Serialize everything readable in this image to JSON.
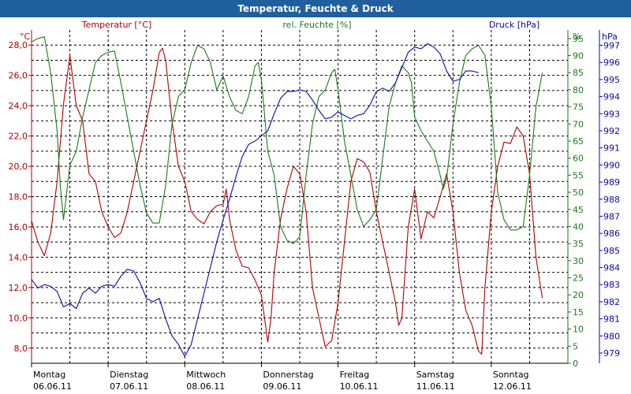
{
  "window": {
    "title": "Temperatur, Feuchte & Druck"
  },
  "chart_data": {
    "type": "line",
    "title": "Temperatur, Feuchte & Druck",
    "colors": {
      "temperature": "#b00000",
      "humidity": "#1a7a1a",
      "pressure": "#0a0aa6"
    },
    "x_labels": [
      {
        "day": "Montag",
        "date": "06.06.11",
        "t": 0
      },
      {
        "day": "Dienstag",
        "date": "07.06.11",
        "t": 24
      },
      {
        "day": "Mittwoch",
        "date": "08.06.11",
        "t": 48
      },
      {
        "day": "Donnerstag",
        "date": "09.06.11",
        "t": 72
      },
      {
        "day": "Freitag",
        "date": "10.06.11",
        "t": 96
      },
      {
        "day": "Samstag",
        "date": "11.06.11",
        "t": 120
      },
      {
        "day": "Sonntag",
        "date": "12.06.11",
        "t": 144
      }
    ],
    "xlim": [
      0,
      168
    ],
    "axes": {
      "temperature": {
        "label": "Temperatur [°C]",
        "unit": "°C",
        "range": [
          7,
          29
        ],
        "ticks": [
          8,
          10,
          12,
          14,
          16,
          18,
          20,
          22,
          24,
          26,
          28
        ],
        "tick_labels": [
          "8,0",
          "10,0",
          "12,0",
          "14,0",
          "16,0",
          "18,0",
          "20,0",
          "22,0",
          "24,0",
          "26,0",
          "28,0"
        ]
      },
      "humidity": {
        "label": "rel. Feuchte [%]",
        "unit": "%",
        "range": [
          0,
          97.5
        ],
        "ticks": [
          0,
          5,
          10,
          15,
          20,
          25,
          30,
          35,
          40,
          45,
          50,
          55,
          60,
          65,
          70,
          75,
          80,
          85,
          90,
          95
        ],
        "tick_labels": [
          "0",
          "5",
          "10",
          "15",
          "20",
          "25",
          "30",
          "35",
          "40",
          "45",
          "50",
          "55",
          "60",
          "65",
          "70",
          "75",
          "80",
          "85",
          "90",
          "95"
        ]
      },
      "pressure": {
        "label": "Druck [hPa]",
        "unit": "hPa",
        "range": [
          978.4,
          997.9
        ],
        "ticks": [
          979,
          980,
          981,
          982,
          983,
          984,
          985,
          986,
          987,
          988,
          989,
          990,
          991,
          992,
          993,
          994,
          995,
          996,
          997
        ],
        "tick_labels": [
          "979",
          "980",
          "981",
          "982",
          "983",
          "984",
          "985",
          "986",
          "987",
          "988",
          "989",
          "990",
          "991",
          "992",
          "993",
          "994",
          "995",
          "996",
          "997"
        ]
      }
    },
    "series": [
      {
        "name": "Temperatur [°C]",
        "axis": "temperature",
        "points": [
          [
            0,
            16.4
          ],
          [
            2,
            15
          ],
          [
            4,
            14.1
          ],
          [
            6,
            15.6
          ],
          [
            8,
            19
          ],
          [
            10,
            24.1
          ],
          [
            12,
            27.3
          ],
          [
            14,
            24
          ],
          [
            16,
            23
          ],
          [
            18,
            19.5
          ],
          [
            20,
            19
          ],
          [
            22,
            17
          ],
          [
            24,
            16
          ],
          [
            26,
            15.3
          ],
          [
            28,
            15.6
          ],
          [
            30,
            17
          ],
          [
            32,
            19
          ],
          [
            34,
            21
          ],
          [
            36,
            23
          ],
          [
            38,
            25
          ],
          [
            40,
            27.5
          ],
          [
            41,
            27.8
          ],
          [
            42,
            27
          ],
          [
            44,
            23
          ],
          [
            46,
            20
          ],
          [
            48,
            19
          ],
          [
            50,
            17
          ],
          [
            52,
            16.5
          ],
          [
            54,
            16.2
          ],
          [
            56,
            17
          ],
          [
            58,
            17.4
          ],
          [
            60,
            17.5
          ],
          [
            61,
            18.5
          ],
          [
            62,
            16.5
          ],
          [
            64,
            14.5
          ],
          [
            66,
            13.4
          ],
          [
            68,
            13.3
          ],
          [
            70,
            12.5
          ],
          [
            72,
            11.5
          ],
          [
            74,
            8.4
          ],
          [
            75,
            10
          ],
          [
            76,
            13
          ],
          [
            78,
            16.5
          ],
          [
            80,
            18.5
          ],
          [
            82,
            20
          ],
          [
            84,
            19.5
          ],
          [
            86,
            17
          ],
          [
            88,
            12
          ],
          [
            90,
            10
          ],
          [
            92,
            8.1
          ],
          [
            94,
            8.5
          ],
          [
            96,
            11
          ],
          [
            98,
            15
          ],
          [
            100,
            19
          ],
          [
            102,
            20.5
          ],
          [
            104,
            20.3
          ],
          [
            106,
            19.6
          ],
          [
            108,
            17
          ],
          [
            110,
            15
          ],
          [
            112,
            13
          ],
          [
            114,
            11
          ],
          [
            115,
            9.5
          ],
          [
            116,
            10
          ],
          [
            118,
            16
          ],
          [
            120,
            18.5
          ],
          [
            122,
            15.2
          ],
          [
            124,
            17
          ],
          [
            126,
            16.6
          ],
          [
            128,
            18
          ],
          [
            130,
            19.5
          ],
          [
            132,
            17
          ],
          [
            134,
            13
          ],
          [
            136,
            10.5
          ],
          [
            138,
            9.5
          ],
          [
            140,
            7.8
          ],
          [
            141,
            7.6
          ],
          [
            142,
            12
          ],
          [
            144,
            17
          ],
          [
            146,
            20
          ],
          [
            148,
            21.6
          ],
          [
            150,
            21.5
          ],
          [
            152,
            22.6
          ],
          [
            154,
            22
          ],
          [
            156,
            19.5
          ],
          [
            158,
            14
          ],
          [
            160,
            11.3
          ]
        ]
      },
      {
        "name": "rel. Feuchte [%]",
        "axis": "humidity",
        "points": [
          [
            0,
            94
          ],
          [
            2,
            95
          ],
          [
            4,
            95.5
          ],
          [
            6,
            85
          ],
          [
            8,
            68
          ],
          [
            9,
            52
          ],
          [
            10,
            42
          ],
          [
            12,
            58
          ],
          [
            14,
            62
          ],
          [
            16,
            72
          ],
          [
            18,
            80
          ],
          [
            20,
            88
          ],
          [
            22,
            90
          ],
          [
            24,
            91
          ],
          [
            26,
            91.3
          ],
          [
            28,
            82
          ],
          [
            30,
            72
          ],
          [
            32,
            62
          ],
          [
            34,
            52
          ],
          [
            36,
            44
          ],
          [
            38,
            41
          ],
          [
            40,
            41
          ],
          [
            42,
            52
          ],
          [
            44,
            70
          ],
          [
            46,
            78
          ],
          [
            48,
            80
          ],
          [
            50,
            88
          ],
          [
            52,
            93
          ],
          [
            54,
            92
          ],
          [
            56,
            88
          ],
          [
            58,
            80
          ],
          [
            60,
            84
          ],
          [
            62,
            78
          ],
          [
            64,
            74
          ],
          [
            66,
            73
          ],
          [
            68,
            78
          ],
          [
            70,
            87
          ],
          [
            71,
            88
          ],
          [
            72,
            83
          ],
          [
            74,
            62
          ],
          [
            76,
            55
          ],
          [
            78,
            40
          ],
          [
            80,
            36
          ],
          [
            82,
            35
          ],
          [
            84,
            37
          ],
          [
            86,
            55
          ],
          [
            88,
            70
          ],
          [
            90,
            78
          ],
          [
            92,
            80
          ],
          [
            94,
            85
          ],
          [
            95,
            86
          ],
          [
            96,
            80
          ],
          [
            98,
            65
          ],
          [
            100,
            55
          ],
          [
            102,
            45
          ],
          [
            104,
            40
          ],
          [
            106,
            42
          ],
          [
            108,
            45
          ],
          [
            110,
            60
          ],
          [
            112,
            75
          ],
          [
            114,
            82
          ],
          [
            116,
            87
          ],
          [
            118,
            85
          ],
          [
            119,
            82
          ],
          [
            120,
            72
          ],
          [
            122,
            68
          ],
          [
            124,
            65
          ],
          [
            126,
            62
          ],
          [
            128,
            55
          ],
          [
            129,
            51
          ],
          [
            130,
            54
          ],
          [
            132,
            70
          ],
          [
            134,
            82
          ],
          [
            136,
            90
          ],
          [
            138,
            92
          ],
          [
            140,
            93
          ],
          [
            142,
            90
          ],
          [
            144,
            75
          ],
          [
            146,
            50
          ],
          [
            148,
            42
          ],
          [
            150,
            39
          ],
          [
            152,
            39
          ],
          [
            154,
            40
          ],
          [
            156,
            55
          ],
          [
            158,
            75
          ],
          [
            160,
            85
          ]
        ]
      },
      {
        "name": "Druck [hPa]",
        "axis": "pressure",
        "points": [
          [
            0,
            983.3
          ],
          [
            2,
            982.8
          ],
          [
            4,
            983
          ],
          [
            6,
            982.9
          ],
          [
            8,
            982.6
          ],
          [
            10,
            981.7
          ],
          [
            12,
            981.9
          ],
          [
            14,
            981.6
          ],
          [
            16,
            982.5
          ],
          [
            18,
            982.8
          ],
          [
            20,
            982.5
          ],
          [
            22,
            982.9
          ],
          [
            24,
            983
          ],
          [
            26,
            982.9
          ],
          [
            28,
            983.5
          ],
          [
            30,
            983.9
          ],
          [
            32,
            983.8
          ],
          [
            34,
            983.1
          ],
          [
            36,
            982.2
          ],
          [
            38,
            982
          ],
          [
            40,
            982.2
          ],
          [
            42,
            981
          ],
          [
            44,
            980
          ],
          [
            46,
            979.5
          ],
          [
            48,
            978.8
          ],
          [
            50,
            979.5
          ],
          [
            52,
            981
          ],
          [
            54,
            982.5
          ],
          [
            56,
            984
          ],
          [
            58,
            985.5
          ],
          [
            60,
            986.8
          ],
          [
            62,
            988
          ],
          [
            64,
            989.3
          ],
          [
            66,
            990.5
          ],
          [
            68,
            991.2
          ],
          [
            70,
            991.4
          ],
          [
            72,
            991.7
          ],
          [
            74,
            992
          ],
          [
            76,
            993
          ],
          [
            78,
            993.9
          ],
          [
            80,
            994.3
          ],
          [
            82,
            994.3
          ],
          [
            84,
            994.4
          ],
          [
            86,
            994.3
          ],
          [
            88,
            993.8
          ],
          [
            90,
            993.2
          ],
          [
            92,
            992.7
          ],
          [
            94,
            992.8
          ],
          [
            96,
            993.1
          ],
          [
            98,
            992.9
          ],
          [
            100,
            992.7
          ],
          [
            102,
            992.9
          ],
          [
            104,
            993
          ],
          [
            106,
            993.5
          ],
          [
            108,
            994.3
          ],
          [
            110,
            994.5
          ],
          [
            112,
            994.3
          ],
          [
            114,
            994.8
          ],
          [
            116,
            995.7
          ],
          [
            118,
            996.6
          ],
          [
            120,
            996.9
          ],
          [
            122,
            996.8
          ],
          [
            124,
            997.1
          ],
          [
            126,
            996.9
          ],
          [
            128,
            996.5
          ],
          [
            130,
            995.5
          ],
          [
            132,
            994.9
          ],
          [
            134,
            995
          ],
          [
            136,
            995.5
          ],
          [
            138,
            995.5
          ],
          [
            140,
            995.4
          ]
        ]
      }
    ]
  }
}
